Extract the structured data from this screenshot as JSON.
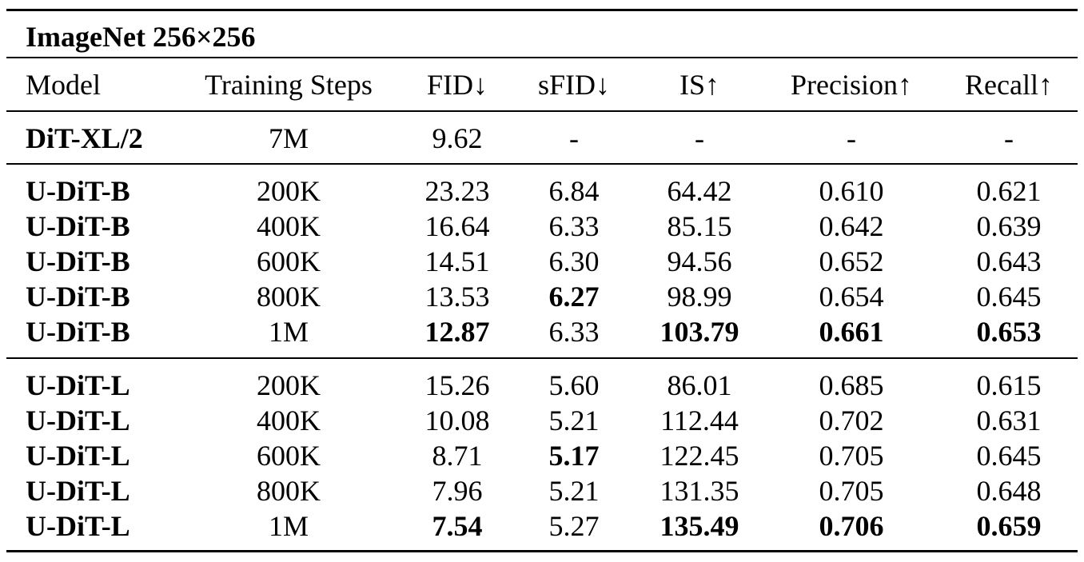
{
  "table": {
    "title": "ImageNet 256×256",
    "headers": [
      "Model",
      "Training Steps",
      "FID↓",
      "sFID↓",
      "IS↑",
      "Precision↑",
      "Recall↑"
    ],
    "groups": [
      {
        "rows": [
          {
            "model": "DiT-XL/2",
            "steps": "7M",
            "fid": "9.62",
            "sfid": "-",
            "is": "-",
            "precision": "-",
            "recall": "-",
            "bold": []
          }
        ]
      },
      {
        "rows": [
          {
            "model": "U-DiT-B",
            "steps": "200K",
            "fid": "23.23",
            "sfid": "6.84",
            "is": "64.42",
            "precision": "0.610",
            "recall": "0.621",
            "bold": []
          },
          {
            "model": "U-DiT-B",
            "steps": "400K",
            "fid": "16.64",
            "sfid": "6.33",
            "is": "85.15",
            "precision": "0.642",
            "recall": "0.639",
            "bold": []
          },
          {
            "model": "U-DiT-B",
            "steps": "600K",
            "fid": "14.51",
            "sfid": "6.30",
            "is": "94.56",
            "precision": "0.652",
            "recall": "0.643",
            "bold": []
          },
          {
            "model": "U-DiT-B",
            "steps": "800K",
            "fid": "13.53",
            "sfid": "6.27",
            "is": "98.99",
            "precision": "0.654",
            "recall": "0.645",
            "bold": [
              "sfid"
            ]
          },
          {
            "model": "U-DiT-B",
            "steps": "1M",
            "fid": "12.87",
            "sfid": "6.33",
            "is": "103.79",
            "precision": "0.661",
            "recall": "0.653",
            "bold": [
              "fid",
              "is",
              "precision",
              "recall"
            ]
          }
        ]
      },
      {
        "rows": [
          {
            "model": "U-DiT-L",
            "steps": "200K",
            "fid": "15.26",
            "sfid": "5.60",
            "is": "86.01",
            "precision": "0.685",
            "recall": "0.615",
            "bold": []
          },
          {
            "model": "U-DiT-L",
            "steps": "400K",
            "fid": "10.08",
            "sfid": "5.21",
            "is": "112.44",
            "precision": "0.702",
            "recall": "0.631",
            "bold": []
          },
          {
            "model": "U-DiT-L",
            "steps": "600K",
            "fid": "8.71",
            "sfid": "5.17",
            "is": "122.45",
            "precision": "0.705",
            "recall": "0.645",
            "bold": [
              "sfid"
            ]
          },
          {
            "model": "U-DiT-L",
            "steps": "800K",
            "fid": "7.96",
            "sfid": "5.21",
            "is": "131.35",
            "precision": "0.705",
            "recall": "0.648",
            "bold": []
          },
          {
            "model": "U-DiT-L",
            "steps": "1M",
            "fid": "7.54",
            "sfid": "5.27",
            "is": "135.49",
            "precision": "0.706",
            "recall": "0.659",
            "bold": [
              "fid",
              "is",
              "precision",
              "recall"
            ]
          }
        ]
      }
    ]
  }
}
